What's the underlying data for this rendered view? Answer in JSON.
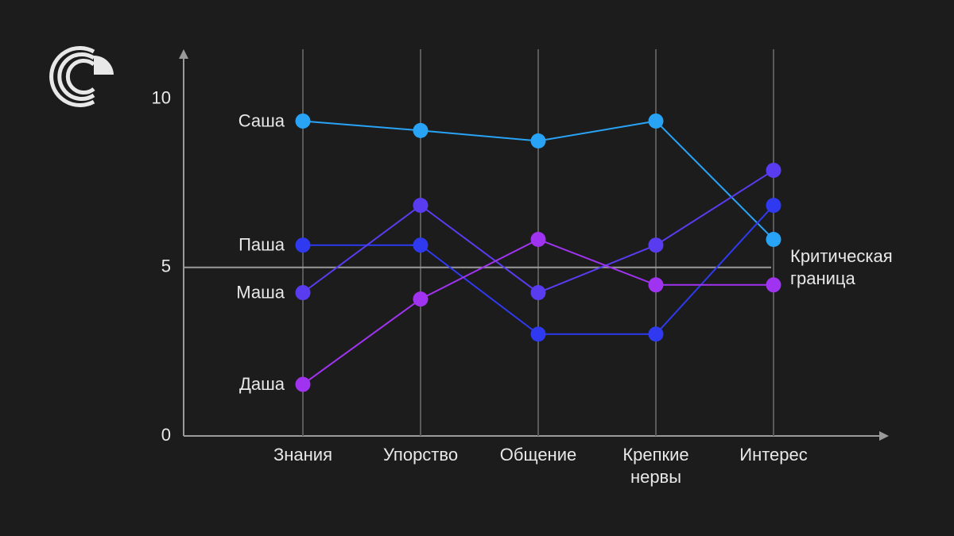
{
  "chart_data": {
    "type": "line",
    "categories": [
      "Знания",
      "Упорство",
      "Общение",
      "Крепкие нервы",
      "Интерес"
    ],
    "series": [
      {
        "name": "Саша",
        "color": "#29a3f5",
        "values": [
          9.34,
          9.06,
          8.75,
          9.34,
          5.83
        ]
      },
      {
        "name": "Паша",
        "color": "#2f3af0",
        "values": [
          5.66,
          5.66,
          3.02,
          3.02,
          6.84
        ]
      },
      {
        "name": "Маша",
        "color": "#5a3cf0",
        "values": [
          4.25,
          6.84,
          4.25,
          5.66,
          7.88
        ]
      },
      {
        "name": "Даша",
        "color": "#a033f0",
        "values": [
          1.53,
          4.06,
          5.83,
          4.48,
          4.48
        ]
      }
    ],
    "ylim": [
      0,
      11.4
    ],
    "yticks": [
      0,
      5,
      10
    ],
    "grid": true,
    "threshold": {
      "value": 5,
      "label": "Критическая граница"
    }
  }
}
